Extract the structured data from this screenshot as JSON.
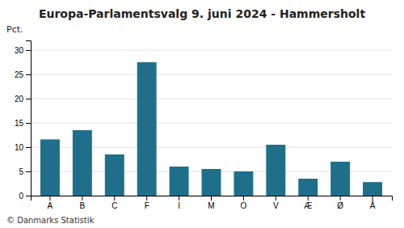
{
  "chart_data": {
    "type": "bar",
    "title": "Europa-Parlamentsvalg 9. juni 2024 - Hammersholt",
    "y_label": "Pct.",
    "annotations": [
      "© Danmarks Statistik"
    ],
    "categories": [
      "A",
      "B",
      "C",
      "F",
      "I",
      "M",
      "O",
      "V",
      "Æ",
      "Ø",
      "Å"
    ],
    "values": [
      11.6,
      13.5,
      8.5,
      27.5,
      6.0,
      5.5,
      5.0,
      10.5,
      3.5,
      7.0,
      2.8
    ],
    "color": "#1f6f8b",
    "ylim": [
      0,
      32
    ],
    "yticks": [
      0,
      5,
      10,
      15,
      20,
      25,
      30
    ],
    "grid": true
  }
}
